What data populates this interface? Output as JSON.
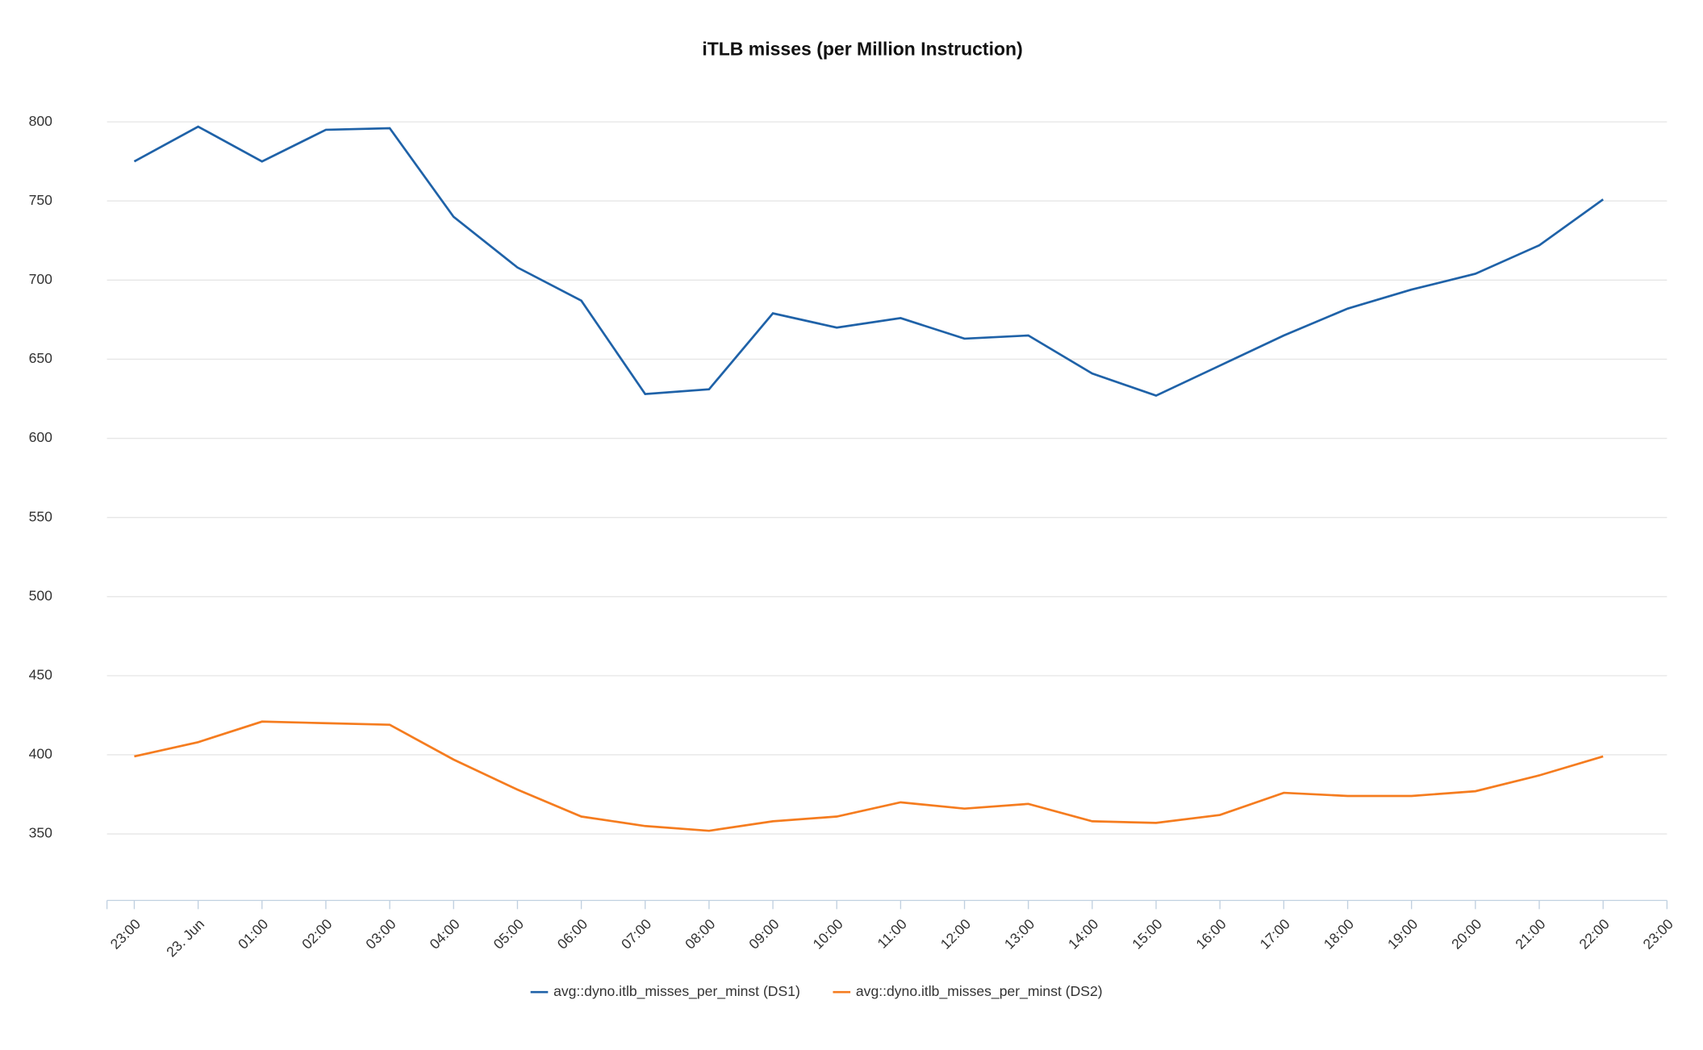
{
  "chart_data": {
    "type": "line",
    "title": "iTLB misses (per Million Instruction)",
    "categories": [
      "23:00",
      "23. Jun",
      "01:00",
      "02:00",
      "03:00",
      "04:00",
      "05:00",
      "06:00",
      "07:00",
      "08:00",
      "09:00",
      "10:00",
      "11:00",
      "12:00",
      "13:00",
      "14:00",
      "15:00",
      "16:00",
      "17:00",
      "18:00",
      "19:00",
      "20:00",
      "21:00",
      "22:00",
      "23:00"
    ],
    "series": [
      {
        "name": "avg::dyno.itlb_misses_per_minst (DS1)",
        "color": "#1f62a8",
        "values": [
          775,
          797,
          775,
          795,
          796,
          740,
          708,
          687,
          628,
          631,
          679,
          670,
          676,
          663,
          665,
          641,
          627,
          646,
          665,
          682,
          694,
          704,
          722,
          751,
          null
        ]
      },
      {
        "name": "avg::dyno.itlb_misses_per_minst (DS2)",
        "color": "#f57c1f",
        "values": [
          399,
          408,
          421,
          420,
          419,
          397,
          378,
          361,
          355,
          352,
          358,
          361,
          370,
          366,
          369,
          358,
          357,
          362,
          376,
          374,
          374,
          377,
          387,
          399,
          null
        ]
      }
    ],
    "ylim": [
      308,
      808
    ],
    "yticks": [
      350,
      400,
      450,
      500,
      550,
      600,
      650,
      700,
      750,
      800
    ],
    "grid": true,
    "legend": "bottom"
  }
}
